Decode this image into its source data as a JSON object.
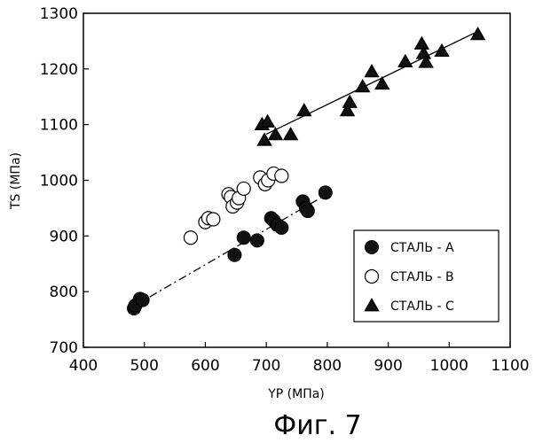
{
  "chart_data": {
    "type": "scatter",
    "xlabel": "YP (МПа)",
    "ylabel": "TS (МПа)",
    "caption": "Фиг. 7",
    "xlim": [
      400,
      1100
    ],
    "ylim": [
      700,
      1300
    ],
    "xticks": [
      400,
      500,
      600,
      700,
      800,
      900,
      1000,
      1100
    ],
    "yticks": [
      700,
      800,
      900,
      1000,
      1100,
      1200,
      1300
    ],
    "grid": false,
    "legend_position": "bottom-right",
    "series": [
      {
        "name": "СТАЛЬ - А",
        "marker": "filled-circle",
        "fit_line": "dash-dot",
        "fit_range": [
          485,
          800
        ],
        "points": [
          {
            "x": 483,
            "y": 770
          },
          {
            "x": 485,
            "y": 775
          },
          {
            "x": 493,
            "y": 787
          },
          {
            "x": 497,
            "y": 785
          },
          {
            "x": 648,
            "y": 866
          },
          {
            "x": 663,
            "y": 897
          },
          {
            "x": 685,
            "y": 892
          },
          {
            "x": 708,
            "y": 932
          },
          {
            "x": 712,
            "y": 928
          },
          {
            "x": 718,
            "y": 920
          },
          {
            "x": 725,
            "y": 915
          },
          {
            "x": 760,
            "y": 962
          },
          {
            "x": 765,
            "y": 950
          },
          {
            "x": 768,
            "y": 945
          },
          {
            "x": 797,
            "y": 978
          }
        ]
      },
      {
        "name": "СТАЛЬ - В",
        "marker": "open-circle",
        "fit_line": "none",
        "points": [
          {
            "x": 576,
            "y": 897
          },
          {
            "x": 600,
            "y": 925
          },
          {
            "x": 605,
            "y": 932
          },
          {
            "x": 613,
            "y": 930
          },
          {
            "x": 638,
            "y": 975
          },
          {
            "x": 642,
            "y": 970
          },
          {
            "x": 645,
            "y": 953
          },
          {
            "x": 652,
            "y": 960
          },
          {
            "x": 655,
            "y": 968
          },
          {
            "x": 663,
            "y": 985
          },
          {
            "x": 690,
            "y": 1005
          },
          {
            "x": 698,
            "y": 993
          },
          {
            "x": 703,
            "y": 1000
          },
          {
            "x": 712,
            "y": 1012
          },
          {
            "x": 725,
            "y": 1008
          }
        ]
      },
      {
        "name": "СТАЛЬ - С",
        "marker": "filled-triangle",
        "fit_line": "solid",
        "fit_range": [
          700,
          1045
        ],
        "points": [
          {
            "x": 693,
            "y": 1100
          },
          {
            "x": 697,
            "y": 1072
          },
          {
            "x": 702,
            "y": 1105
          },
          {
            "x": 715,
            "y": 1082
          },
          {
            "x": 740,
            "y": 1082
          },
          {
            "x": 762,
            "y": 1125
          },
          {
            "x": 833,
            "y": 1125
          },
          {
            "x": 837,
            "y": 1140
          },
          {
            "x": 858,
            "y": 1168
          },
          {
            "x": 873,
            "y": 1195
          },
          {
            "x": 890,
            "y": 1173
          },
          {
            "x": 928,
            "y": 1213
          },
          {
            "x": 955,
            "y": 1245
          },
          {
            "x": 958,
            "y": 1228
          },
          {
            "x": 962,
            "y": 1212
          },
          {
            "x": 988,
            "y": 1232
          },
          {
            "x": 1047,
            "y": 1262
          }
        ]
      }
    ]
  }
}
